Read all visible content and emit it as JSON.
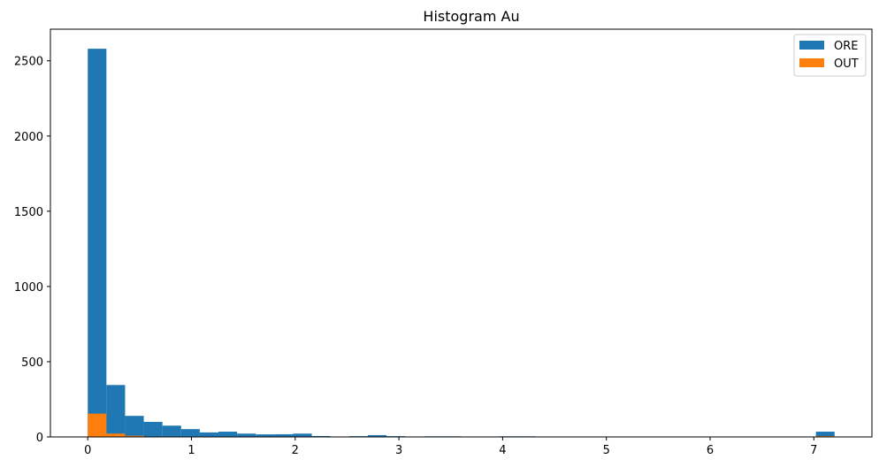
{
  "chart_data": {
    "type": "bar",
    "title": "Histogram Au",
    "xlabel": "",
    "ylabel": "",
    "xlim": [
      -0.36,
      7.56
    ],
    "ylim": [
      0,
      2710
    ],
    "x_ticks": [
      0,
      1,
      2,
      3,
      4,
      5,
      6,
      7
    ],
    "y_ticks": [
      0,
      500,
      1000,
      1500,
      2000,
      2500
    ],
    "bin_width": 0.18,
    "grid": false,
    "legend_placement": "top-right",
    "series": [
      {
        "name": "ORE",
        "color": "#1f77b4",
        "bins": [
          {
            "x0": 0.0,
            "count": 2580
          },
          {
            "x0": 0.18,
            "count": 345
          },
          {
            "x0": 0.36,
            "count": 140
          },
          {
            "x0": 0.54,
            "count": 100
          },
          {
            "x0": 0.72,
            "count": 75
          },
          {
            "x0": 0.9,
            "count": 52
          },
          {
            "x0": 1.08,
            "count": 30
          },
          {
            "x0": 1.26,
            "count": 35
          },
          {
            "x0": 1.44,
            "count": 22
          },
          {
            "x0": 1.62,
            "count": 17
          },
          {
            "x0": 1.8,
            "count": 18
          },
          {
            "x0": 1.98,
            "count": 22
          },
          {
            "x0": 2.16,
            "count": 6
          },
          {
            "x0": 2.52,
            "count": 5
          },
          {
            "x0": 2.7,
            "count": 12
          },
          {
            "x0": 2.88,
            "count": 5
          },
          {
            "x0": 3.24,
            "count": 4
          },
          {
            "x0": 3.42,
            "count": 4
          },
          {
            "x0": 3.96,
            "count": 4
          },
          {
            "x0": 4.14,
            "count": 4
          },
          {
            "x0": 7.02,
            "count": 35
          }
        ]
      },
      {
        "name": "OUT",
        "color": "#ff7f0e",
        "bins": [
          {
            "x0": 0.0,
            "count": 155
          },
          {
            "x0": 0.18,
            "count": 22
          },
          {
            "x0": 0.36,
            "count": 8
          },
          {
            "x0": 0.54,
            "count": 3
          },
          {
            "x0": 7.02,
            "count": 6
          }
        ]
      }
    ]
  }
}
